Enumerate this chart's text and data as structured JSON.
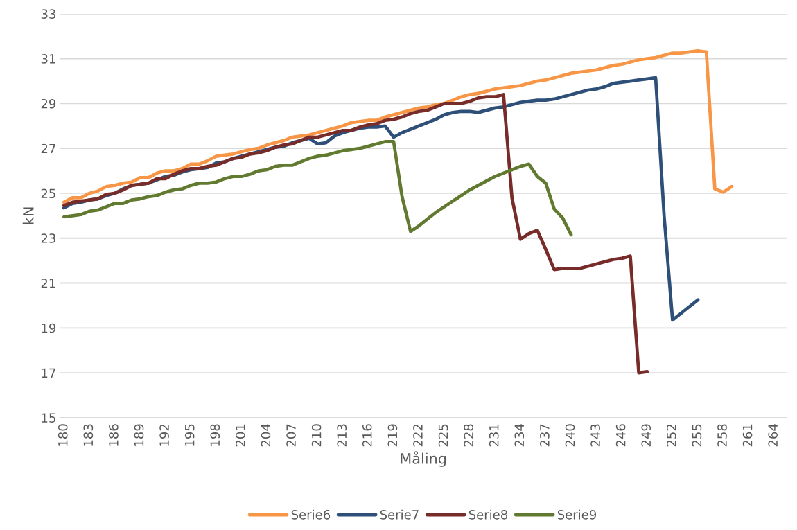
{
  "chart_data": {
    "type": "line",
    "xlabel": "Måling",
    "ylabel": "kN",
    "categories": [
      "180",
      null,
      null,
      "183",
      null,
      null,
      "186",
      null,
      null,
      "189",
      null,
      null,
      "192",
      null,
      null,
      "195",
      null,
      null,
      "198",
      null,
      null,
      "201",
      null,
      null,
      "204",
      null,
      null,
      "207",
      null,
      null,
      "210",
      null,
      null,
      "213",
      null,
      null,
      "216",
      null,
      null,
      "219",
      null,
      null,
      "222",
      null,
      null,
      "225",
      null,
      null,
      "228",
      null,
      null,
      "231",
      null,
      null,
      "234",
      null,
      null,
      "237",
      null,
      null,
      "240",
      null,
      null,
      "243",
      null,
      null,
      "246",
      null,
      null,
      "249",
      null,
      null,
      "252",
      null,
      null,
      "255",
      null,
      null,
      "258",
      null,
      null,
      "261",
      null,
      null,
      "264",
      null
    ],
    "ylim": [
      15,
      33
    ],
    "yticks": [
      15,
      17,
      19,
      21,
      23,
      25,
      27,
      29,
      31,
      33
    ],
    "grid": "y",
    "legend": "bottom",
    "marker": "none",
    "line_style": "solid",
    "series": [
      {
        "name": "Serie6",
        "color": "#f79646",
        "values": [
          24.6,
          24.8,
          24.8,
          25.0,
          25.1,
          25.3,
          25.35,
          25.45,
          25.5,
          25.7,
          25.7,
          25.9,
          26.0,
          26.0,
          26.1,
          26.3,
          26.3,
          26.45,
          26.65,
          26.7,
          26.75,
          26.85,
          26.95,
          27.0,
          27.15,
          27.25,
          27.35,
          27.5,
          27.55,
          27.6,
          27.7,
          27.8,
          27.9,
          28.0,
          28.15,
          28.2,
          28.25,
          28.25,
          28.4,
          28.5,
          28.6,
          28.7,
          28.8,
          28.85,
          28.95,
          29.0,
          29.15,
          29.3,
          29.4,
          29.45,
          29.55,
          29.65,
          29.7,
          29.75,
          29.8,
          29.9,
          30.0,
          30.05,
          30.15,
          30.25,
          30.35,
          30.4,
          30.45,
          30.5,
          30.6,
          30.7,
          30.75,
          30.85,
          30.95,
          31.0,
          31.05,
          31.15,
          31.25,
          31.25,
          31.3,
          31.35,
          31.3,
          25.2,
          25.05,
          25.3,
          null,
          null,
          null,
          null,
          null,
          null
        ]
      },
      {
        "name": "Serie7",
        "color": "#2e5078",
        "values": [
          24.35,
          24.55,
          24.6,
          24.7,
          24.75,
          24.9,
          25.0,
          25.2,
          25.35,
          25.4,
          25.45,
          25.6,
          25.75,
          25.8,
          25.95,
          26.05,
          26.1,
          26.15,
          26.35,
          26.4,
          26.55,
          26.65,
          26.75,
          26.85,
          26.95,
          27.05,
          27.1,
          27.25,
          27.35,
          27.45,
          27.2,
          27.25,
          27.55,
          27.7,
          27.8,
          27.9,
          27.95,
          27.95,
          28.0,
          27.5,
          27.7,
          27.85,
          28.0,
          28.15,
          28.3,
          28.5,
          28.6,
          28.65,
          28.65,
          28.6,
          28.7,
          28.8,
          28.85,
          28.95,
          29.05,
          29.1,
          29.15,
          29.15,
          29.2,
          29.3,
          29.4,
          29.5,
          29.6,
          29.65,
          29.75,
          29.9,
          29.95,
          30.0,
          30.05,
          30.1,
          30.15,
          24.0,
          19.35,
          19.65,
          19.95,
          20.25,
          null,
          null,
          null,
          null,
          null,
          null,
          null,
          null,
          null,
          null
        ]
      },
      {
        "name": "Serie8",
        "color": "#772c2a",
        "values": [
          24.45,
          24.6,
          24.65,
          24.7,
          24.75,
          24.95,
          25.0,
          25.15,
          25.35,
          25.4,
          25.45,
          25.65,
          25.65,
          25.85,
          26.0,
          26.1,
          26.1,
          26.2,
          26.25,
          26.4,
          26.55,
          26.6,
          26.75,
          26.8,
          26.9,
          27.05,
          27.15,
          27.2,
          27.35,
          27.5,
          27.5,
          27.6,
          27.7,
          27.8,
          27.8,
          27.95,
          28.05,
          28.1,
          28.25,
          28.3,
          28.4,
          28.55,
          28.65,
          28.7,
          28.85,
          29.0,
          29.0,
          29.0,
          29.1,
          29.25,
          29.3,
          29.3,
          29.4,
          24.8,
          22.95,
          23.2,
          23.35,
          22.5,
          21.6,
          21.65,
          21.65,
          21.65,
          21.75,
          21.85,
          21.95,
          22.05,
          22.1,
          22.2,
          17.0,
          17.05,
          null,
          null,
          null,
          null,
          null,
          null,
          null,
          null,
          null,
          null,
          null,
          null,
          null,
          null,
          null,
          null
        ]
      },
      {
        "name": "Serie9",
        "color": "#617a30",
        "values": [
          23.95,
          24.0,
          24.05,
          24.2,
          24.25,
          24.4,
          24.55,
          24.55,
          24.7,
          24.75,
          24.85,
          24.9,
          25.05,
          25.15,
          25.2,
          25.35,
          25.45,
          25.45,
          25.5,
          25.65,
          25.75,
          25.75,
          25.85,
          26.0,
          26.05,
          26.2,
          26.25,
          26.25,
          26.4,
          26.55,
          26.65,
          26.7,
          26.8,
          26.9,
          26.95,
          27.0,
          27.1,
          27.2,
          27.3,
          27.3,
          24.85,
          23.3,
          23.55,
          23.85,
          24.15,
          24.4,
          24.65,
          24.9,
          25.15,
          25.35,
          25.55,
          25.75,
          25.9,
          26.05,
          26.2,
          26.3,
          25.75,
          25.45,
          24.3,
          23.9,
          23.15,
          null,
          null,
          null,
          null,
          null,
          null,
          null,
          null,
          null,
          null,
          null,
          null,
          null,
          null,
          null,
          null,
          null,
          null,
          null,
          null,
          null,
          null,
          null,
          null,
          null
        ]
      }
    ]
  }
}
